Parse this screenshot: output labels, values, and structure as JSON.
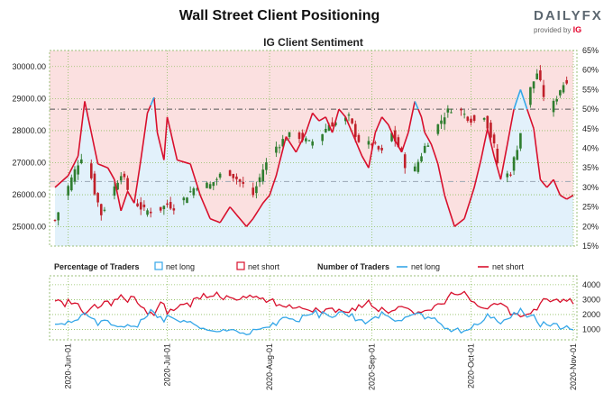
{
  "title": "Wall Street Client Positioning",
  "brand": {
    "name": "DAILYFX",
    "provided_by": "provided by",
    "provider": "IG"
  },
  "colors": {
    "net_long": "#35a7e8",
    "net_short": "#d8102d",
    "up_candle": "#2f7d2f",
    "down_candle": "#c0202a",
    "bg_short": "#fbe0e0",
    "bg_long": "#e2f1fb",
    "grid": "#8fbf60"
  },
  "chart_data": [
    {
      "type": "candlestick",
      "title": "IG Client Sentiment",
      "price_axis": {
        "ticks": [
          "25000.00",
          "26000.00",
          "27000.00",
          "28000.00",
          "29000.00",
          "30000.00"
        ],
        "ylim": [
          24400,
          30500
        ]
      },
      "percent_axis": {
        "ticks": [
          "15%",
          "20%",
          "25%",
          "30%",
          "35%",
          "40%",
          "45%",
          "50%",
          "55%",
          "60%",
          "65%"
        ],
        "ylim": [
          15,
          65
        ]
      },
      "reference_line_pct": 50,
      "price_keypoints": [
        [
          0,
          25200
        ],
        [
          3,
          26000
        ],
        [
          7,
          27000
        ],
        [
          9,
          27400
        ],
        [
          12,
          26100
        ],
        [
          14,
          25400
        ],
        [
          17,
          26000
        ],
        [
          20,
          26700
        ],
        [
          23,
          25900
        ],
        [
          27,
          25500
        ],
        [
          31,
          25500
        ],
        [
          34,
          25700
        ],
        [
          37,
          25600
        ],
        [
          40,
          26000
        ],
        [
          43,
          26300
        ],
        [
          47,
          26300
        ],
        [
          50,
          26600
        ],
        [
          53,
          26700
        ],
        [
          57,
          26300
        ],
        [
          60,
          26000
        ],
        [
          63,
          26800
        ],
        [
          67,
          27500
        ],
        [
          70,
          27800
        ],
        [
          73,
          27900
        ],
        [
          77,
          27600
        ],
        [
          80,
          27800
        ],
        [
          83,
          28200
        ],
        [
          87,
          28300
        ],
        [
          89,
          28400
        ],
        [
          91,
          27900
        ],
        [
          93,
          27500
        ],
        [
          96,
          27600
        ],
        [
          99,
          27300
        ],
        [
          102,
          27900
        ],
        [
          105,
          27300
        ],
        [
          107,
          26600
        ],
        [
          109,
          26800
        ],
        [
          112,
          27500
        ],
        [
          115,
          28000
        ],
        [
          118,
          28500
        ],
        [
          121,
          28800
        ],
        [
          124,
          28500
        ],
        [
          127,
          28300
        ],
        [
          130,
          28500
        ],
        [
          133,
          27500
        ],
        [
          135,
          26500
        ],
        [
          138,
          26700
        ],
        [
          140,
          27500
        ],
        [
          142,
          28400
        ],
        [
          144,
          29300
        ],
        [
          146,
          29800
        ],
        [
          148,
          29100
        ],
        [
          150,
          28600
        ],
        [
          153,
          29300
        ],
        [
          155,
          29600
        ],
        [
          157,
          29200
        ]
      ],
      "price_start_date": "2020-05-28",
      "long_pct_keypoints": [
        [
          0,
          30
        ],
        [
          4,
          33
        ],
        [
          7,
          38
        ],
        [
          9,
          52
        ],
        [
          11,
          44
        ],
        [
          13,
          36
        ],
        [
          16,
          35
        ],
        [
          18,
          32
        ],
        [
          20,
          24
        ],
        [
          22,
          29
        ],
        [
          24,
          26
        ],
        [
          26,
          37
        ],
        [
          28,
          49
        ],
        [
          30,
          53
        ],
        [
          31,
          44
        ],
        [
          33,
          37
        ],
        [
          34,
          48
        ],
        [
          37,
          37
        ],
        [
          41,
          36
        ],
        [
          44,
          28
        ],
        [
          47,
          22
        ],
        [
          50,
          21
        ],
        [
          53,
          25
        ],
        [
          56,
          22
        ],
        [
          58,
          20
        ],
        [
          60,
          22
        ],
        [
          63,
          26
        ],
        [
          65,
          28
        ],
        [
          67,
          33
        ],
        [
          70,
          43
        ],
        [
          73,
          39
        ],
        [
          76,
          44
        ],
        [
          78,
          49
        ],
        [
          80,
          47
        ],
        [
          82,
          48
        ],
        [
          84,
          44
        ],
        [
          86,
          50
        ],
        [
          88,
          48
        ],
        [
          90,
          44
        ],
        [
          93,
          38
        ],
        [
          95,
          35
        ],
        [
          97,
          44
        ],
        [
          99,
          48
        ],
        [
          101,
          46
        ],
        [
          103,
          42
        ],
        [
          105,
          39
        ],
        [
          107,
          44
        ],
        [
          109,
          52
        ],
        [
          111,
          48
        ],
        [
          112,
          44
        ],
        [
          114,
          41
        ],
        [
          116,
          36
        ],
        [
          118,
          28
        ],
        [
          121,
          20
        ],
        [
          124,
          22
        ],
        [
          127,
          30
        ],
        [
          129,
          37
        ],
        [
          131,
          45
        ],
        [
          133,
          38
        ],
        [
          135,
          32
        ],
        [
          137,
          41
        ],
        [
          139,
          50
        ],
        [
          141,
          55
        ],
        [
          143,
          50
        ],
        [
          145,
          45
        ],
        [
          147,
          32
        ],
        [
          149,
          30
        ],
        [
          151,
          32
        ],
        [
          153,
          28
        ],
        [
          155,
          27
        ],
        [
          157,
          28
        ]
      ]
    },
    {
      "type": "line",
      "legend": {
        "percentage_title": "Percentage of Traders",
        "net_long": "net long",
        "net_short": "net short",
        "number_title": "Number of Traders",
        "net_long_2": "net long",
        "net_short_2": "net short"
      },
      "y_ticks": [
        "1000",
        "2000",
        "3000",
        "4000"
      ],
      "ylim": [
        300,
        4600
      ],
      "x_ticks": [
        "2020-Jun-01",
        "2020-Jul-01",
        "2020-Aug-01",
        "2020-Sep-01",
        "2020-Oct-01",
        "2020-Nov-01"
      ]
    }
  ]
}
